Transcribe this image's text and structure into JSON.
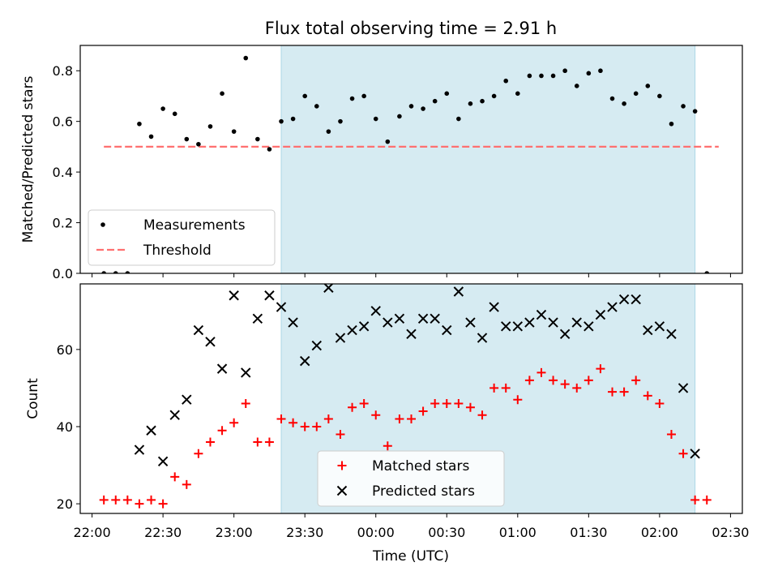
{
  "figure": {
    "title": "Flux total observing time = 2.91 h",
    "xlabel": "Time (UTC)",
    "x_tick_labels": [
      "22:00",
      "22:30",
      "23:00",
      "23:30",
      "00:00",
      "00:30",
      "01:00",
      "01:30",
      "02:00",
      "02:30"
    ],
    "span_color": "#add8e6",
    "threshold_color": "#ff7070"
  },
  "chart_data": [
    {
      "type": "scatter",
      "ylabel": "Matched/Predicted stars",
      "ylim": [
        0,
        0.9
      ],
      "y_ticks": [
        0.0,
        0.2,
        0.4,
        0.6,
        0.8
      ],
      "y_tick_labels": [
        "0.0",
        "0.2",
        "0.4",
        "0.6",
        "0.8"
      ],
      "xlim_minutes": [
        -5,
        275
      ],
      "shaded_span": {
        "start": "23:20",
        "end": "02:15"
      },
      "threshold": {
        "value": 0.5,
        "start": "22:05",
        "end": "02:25"
      },
      "legend_position": "lower-left",
      "legend": [
        "Measurements",
        "Threshold"
      ],
      "series": [
        {
          "name": "Measurements",
          "color": "#000000",
          "marker": "dot",
          "x": [
            "22:05",
            "22:10",
            "22:15",
            "22:20",
            "22:25",
            "22:30",
            "22:35",
            "22:40",
            "22:45",
            "22:50",
            "22:55",
            "23:00",
            "23:05",
            "23:10",
            "23:15",
            "23:20",
            "23:25",
            "23:30",
            "23:35",
            "23:40",
            "23:45",
            "23:50",
            "23:55",
            "00:00",
            "00:05",
            "00:10",
            "00:15",
            "00:20",
            "00:25",
            "00:30",
            "00:35",
            "00:40",
            "00:45",
            "00:50",
            "00:55",
            "01:00",
            "01:05",
            "01:10",
            "01:15",
            "01:20",
            "01:25",
            "01:30",
            "01:35",
            "01:40",
            "01:45",
            "01:50",
            "01:55",
            "02:00",
            "02:05",
            "02:10",
            "02:15",
            "02:20"
          ],
          "values": [
            0.0,
            0.0,
            0.0,
            0.59,
            0.54,
            0.65,
            0.63,
            0.53,
            0.51,
            0.58,
            0.71,
            0.56,
            0.85,
            0.53,
            0.49,
            0.6,
            0.61,
            0.7,
            0.66,
            0.56,
            0.6,
            0.69,
            0.7,
            0.61,
            0.52,
            0.62,
            0.66,
            0.65,
            0.68,
            0.71,
            0.61,
            0.67,
            0.68,
            0.7,
            0.76,
            0.71,
            0.78,
            0.78,
            0.78,
            0.8,
            0.74,
            0.79,
            0.8,
            0.69,
            0.67,
            0.71,
            0.74,
            0.7,
            0.59,
            0.66,
            0.64,
            0.0
          ]
        }
      ]
    },
    {
      "type": "scatter",
      "ylabel": "Count",
      "ylim": [
        17.5,
        77
      ],
      "y_ticks": [
        20,
        40,
        60
      ],
      "y_tick_labels": [
        "20",
        "40",
        "60"
      ],
      "xlim_minutes": [
        -5,
        275
      ],
      "shaded_span": {
        "start": "23:20",
        "end": "02:15"
      },
      "legend_position": "lower-center",
      "legend": [
        "Matched stars",
        "Predicted stars"
      ],
      "series": [
        {
          "name": "Matched stars",
          "color": "#ff0000",
          "marker": "plus",
          "x": [
            "22:05",
            "22:10",
            "22:15",
            "22:20",
            "22:25",
            "22:30",
            "22:35",
            "22:40",
            "22:45",
            "22:50",
            "22:55",
            "23:00",
            "23:05",
            "23:10",
            "23:15",
            "23:20",
            "23:25",
            "23:30",
            "23:35",
            "23:40",
            "23:45",
            "23:50",
            "23:55",
            "00:00",
            "00:05",
            "00:10",
            "00:15",
            "00:20",
            "00:25",
            "00:30",
            "00:35",
            "00:40",
            "00:45",
            "00:50",
            "00:55",
            "01:00",
            "01:05",
            "01:10",
            "01:15",
            "01:20",
            "01:25",
            "01:30",
            "01:35",
            "01:40",
            "01:45",
            "01:50",
            "01:55",
            "02:00",
            "02:05",
            "02:10",
            "02:15",
            "02:20"
          ],
          "values": [
            21,
            21,
            21,
            20,
            21,
            20,
            27,
            25,
            33,
            36,
            39,
            41,
            46,
            36,
            36,
            42,
            41,
            40,
            40,
            42,
            38,
            45,
            46,
            43,
            35,
            42,
            42,
            44,
            46,
            46,
            46,
            45,
            43,
            50,
            50,
            47,
            52,
            54,
            52,
            51,
            50,
            52,
            55,
            49,
            49,
            52,
            48,
            46,
            38,
            33,
            21,
            21
          ]
        },
        {
          "name": "Predicted stars",
          "color": "#000000",
          "marker": "x",
          "x": [
            "22:20",
            "22:25",
            "22:30",
            "22:35",
            "22:40",
            "22:45",
            "22:50",
            "22:55",
            "23:00",
            "23:05",
            "23:10",
            "23:15",
            "23:20",
            "23:25",
            "23:30",
            "23:35",
            "23:40",
            "23:45",
            "23:50",
            "23:55",
            "00:00",
            "00:05",
            "00:10",
            "00:15",
            "00:20",
            "00:25",
            "00:30",
            "00:35",
            "00:40",
            "00:45",
            "00:50",
            "00:55",
            "01:00",
            "01:05",
            "01:10",
            "01:15",
            "01:20",
            "01:25",
            "01:30",
            "01:35",
            "01:40",
            "01:45",
            "01:50",
            "01:55",
            "02:00",
            "02:05",
            "02:10",
            "02:15"
          ],
          "values": [
            34,
            39,
            31,
            43,
            47,
            65,
            62,
            55,
            74,
            54,
            68,
            74,
            71,
            67,
            57,
            61,
            76,
            63,
            65,
            66,
            70,
            67,
            68,
            64,
            68,
            68,
            65,
            75,
            67,
            63,
            71,
            66,
            66,
            67,
            69,
            67,
            64,
            67,
            66,
            69,
            71,
            73,
            73,
            65,
            66,
            64,
            50,
            33
          ]
        }
      ]
    }
  ]
}
